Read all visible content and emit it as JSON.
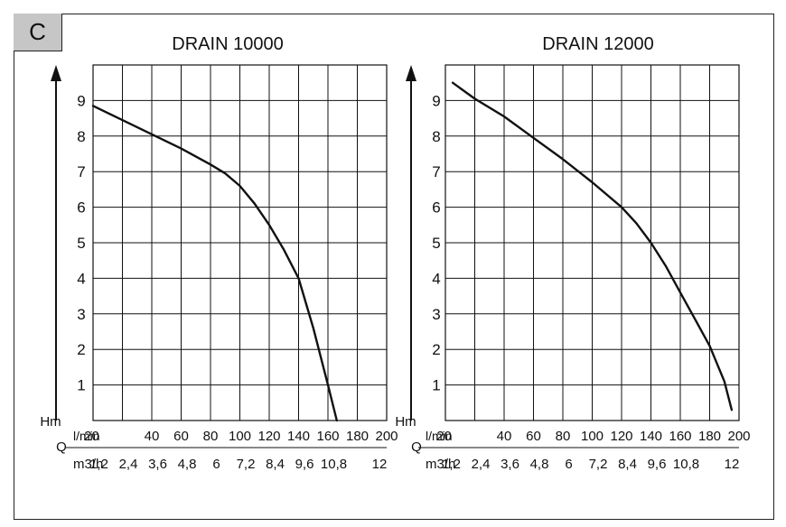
{
  "panel_label": "C",
  "chart_data": [
    {
      "type": "line",
      "title": "DRAIN 10000",
      "ylabel": "Hm",
      "xlabel": "Q",
      "x_unit_primary": "l/min",
      "x_unit_secondary": "m3/h",
      "x_ticks_primary": [
        "20",
        "40",
        "60",
        "80",
        "100",
        "120",
        "140",
        "160",
        "180",
        "200"
      ],
      "x_ticks_secondary": [
        "1,2",
        "2,4",
        "3,6",
        "4,8",
        "6",
        "7,2",
        "8,4",
        "9,6",
        "10,8",
        "12"
      ],
      "y_ticks": [
        "1",
        "2",
        "3",
        "4",
        "5",
        "6",
        "7",
        "8",
        "9"
      ],
      "xlim": [
        0,
        200
      ],
      "ylim": [
        0,
        10
      ],
      "grid": true,
      "series": [
        {
          "x": [
            0,
            20,
            40,
            60,
            80,
            90,
            100,
            110,
            120,
            130,
            140,
            150,
            160,
            166
          ],
          "y": [
            8.85,
            8.45,
            8.05,
            7.65,
            7.2,
            6.95,
            6.6,
            6.1,
            5.5,
            4.8,
            4.0,
            2.6,
            1.0,
            0
          ]
        }
      ]
    },
    {
      "type": "line",
      "title": "DRAIN 12000",
      "ylabel": "Hm",
      "xlabel": "Q",
      "x_unit_primary": "l/min",
      "x_unit_secondary": "m3/h",
      "x_ticks_primary": [
        "20",
        "40",
        "60",
        "80",
        "100",
        "120",
        "140",
        "160",
        "180",
        "200"
      ],
      "x_ticks_secondary": [
        "1,2",
        "2,4",
        "3,6",
        "4,8",
        "6",
        "7,2",
        "8,4",
        "9,6",
        "10,8",
        "12"
      ],
      "y_ticks": [
        "1",
        "2",
        "3",
        "4",
        "5",
        "6",
        "7",
        "8",
        "9"
      ],
      "xlim": [
        0,
        200
      ],
      "ylim": [
        0,
        10
      ],
      "grid": true,
      "series": [
        {
          "x": [
            5,
            20,
            40,
            60,
            80,
            100,
            120,
            130,
            140,
            150,
            160,
            170,
            180,
            190,
            195
          ],
          "y": [
            9.5,
            9.05,
            8.55,
            7.95,
            7.35,
            6.7,
            6.0,
            5.55,
            5.0,
            4.35,
            3.6,
            2.85,
            2.1,
            1.1,
            0.3
          ]
        }
      ]
    }
  ]
}
